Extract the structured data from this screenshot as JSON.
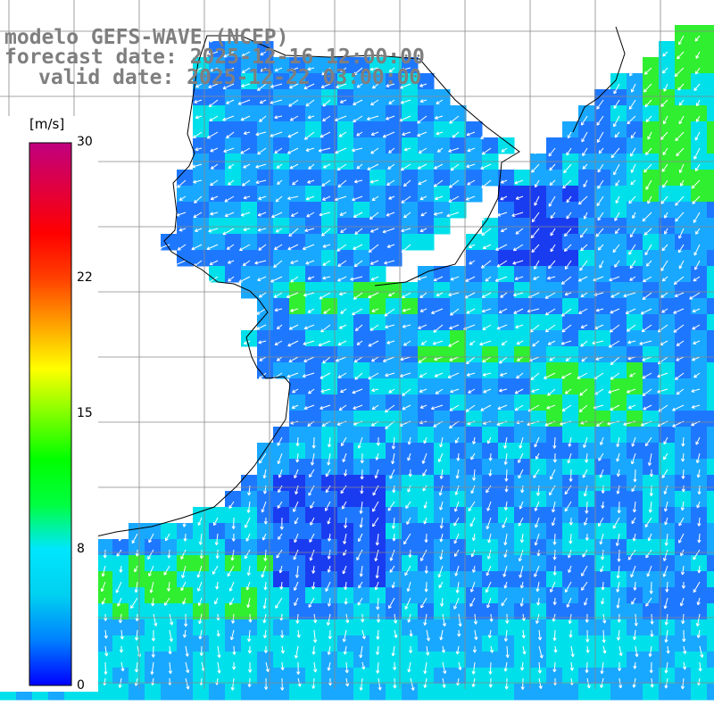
{
  "title": {
    "line1": "modelo GEFS-WAVE (NCEP)",
    "line2": "forecast date: 2025-12-16 12:00:00",
    "line3": "valid date: 2025-12-22 03:00:00"
  },
  "colorbar": {
    "units": "[m/s]",
    "ticks": [
      "30",
      "22",
      "15",
      "8",
      "0"
    ],
    "tick_values": [
      30,
      22,
      15,
      8,
      0
    ],
    "colors": [
      "#0000ff",
      "#0080ff",
      "#00d0f0",
      "#00e6ff",
      "#00ff40",
      "#00ff00",
      "#80ff00",
      "#ffff00",
      "#ffa000",
      "#ff4000",
      "#ff0000",
      "#e0003f",
      "#c0007f"
    ]
  },
  "map": {
    "variable": "wind speed",
    "field_colors": {
      "calm": "#1a3cf0",
      "low": "#1e78ff",
      "mid": "#19a8ff",
      "cyan": "#00e0ea",
      "green": "#30ee30"
    },
    "vector_color": "#ffffff",
    "coast_color": "#000000",
    "grid_color": "#888888"
  }
}
